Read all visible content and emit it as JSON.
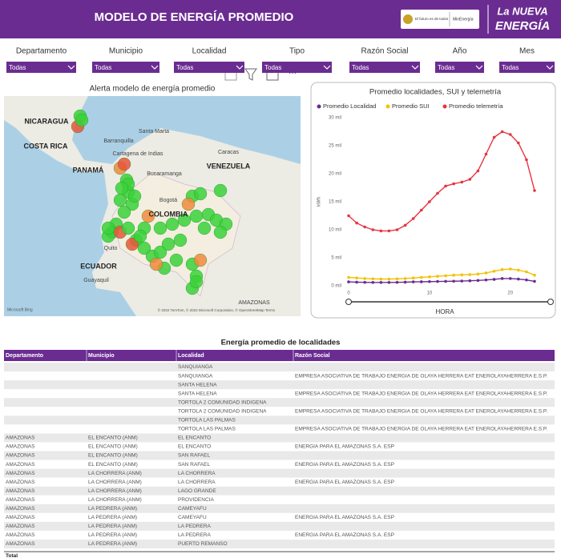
{
  "header": {
    "title": "MODELO DE ENERGÍA PROMEDIO",
    "logo_text": "El futuro es de todos",
    "ministry": "MinEnergía",
    "brand_line1": "La NUEVA",
    "brand_line2": "ENERGÍA"
  },
  "filters": [
    {
      "label": "Departamento",
      "value": "Todas"
    },
    {
      "label": "Municipio",
      "value": "Todas"
    },
    {
      "label": "Localidad",
      "value": "Todas"
    },
    {
      "label": "Tipo",
      "value": "Todas"
    },
    {
      "label": "Razón Social",
      "value": "Todas"
    },
    {
      "label": "Año",
      "value": "Todas"
    },
    {
      "label": "Mes",
      "value": "Todas"
    }
  ],
  "map": {
    "title": "Alerta modelo de energía promedio",
    "labels": [
      "NICARAGUA",
      "COSTA RICA",
      "PANAMÁ",
      "Santa Marta",
      "Barranquilla",
      "Cartagena de Indias",
      "Caracas",
      "VENEZUELA",
      "Bucaramanga",
      "Bogotá",
      "COLOMBIA",
      "Quito",
      "ECUADOR",
      "Guayaquil",
      "AMAZONAS"
    ],
    "attribution": "© 2022 TomTom, © 2022 Microsoft Corporation, © OpenStreetMap Terms",
    "provider": "Microsoft Bing"
  },
  "chart_data": {
    "type": "line",
    "title": "Promedio localidades, SUI y telemetría",
    "y_label": "kWh",
    "x_label": "HORA",
    "x": [
      0,
      1,
      2,
      3,
      4,
      5,
      6,
      7,
      8,
      9,
      10,
      11,
      12,
      13,
      14,
      15,
      16,
      17,
      18,
      19,
      20,
      21,
      22,
      23
    ],
    "xlim": [
      0,
      23
    ],
    "xticks": [
      0,
      10,
      20
    ],
    "ylim": [
      0,
      30000
    ],
    "yticks": [
      {
        "value": 0,
        "label": "0 mil"
      },
      {
        "value": 5000,
        "label": "5 mil"
      },
      {
        "value": 10000,
        "label": "10 mil"
      },
      {
        "value": 15000,
        "label": "15 mil"
      },
      {
        "value": 20000,
        "label": "20 mil"
      },
      {
        "value": 25000,
        "label": "25 mil"
      },
      {
        "value": 30000,
        "label": "30 mil"
      }
    ],
    "series": [
      {
        "name": "Promedio Localidad",
        "color": "#6b2c8f",
        "values": [
          700,
          650,
          620,
          600,
          600,
          600,
          620,
          650,
          700,
          720,
          750,
          780,
          800,
          820,
          850,
          900,
          950,
          1050,
          1150,
          1300,
          1300,
          1200,
          1050,
          800
        ]
      },
      {
        "name": "Promedio SUI",
        "color": "#f2c200",
        "values": [
          1500,
          1400,
          1300,
          1250,
          1200,
          1200,
          1250,
          1300,
          1400,
          1500,
          1600,
          1700,
          1800,
          1900,
          1950,
          2000,
          2100,
          2300,
          2600,
          2900,
          3000,
          2800,
          2500,
          1900
        ]
      },
      {
        "name": "Promedio telemetría",
        "color": "#e8333f",
        "values": [
          12500,
          11200,
          10500,
          10000,
          9800,
          9800,
          10000,
          10800,
          12000,
          13500,
          15000,
          16500,
          17800,
          18200,
          18500,
          19000,
          20500,
          23500,
          26500,
          27500,
          27000,
          25500,
          22500,
          17000
        ]
      }
    ]
  },
  "table": {
    "title": "Energía promedio de localidades",
    "columns": [
      "Departamento",
      "Municipio",
      "Localidad",
      "Razón Social"
    ],
    "rows": [
      [
        null,
        null,
        "SANQUIANGA",
        null
      ],
      [
        null,
        null,
        "SANQUIANGA",
        "EMPRESA ASOCIATIVA DE TRABAJO ENERGIA DE OLAYA HERRERA EAT ENEROLAYAHERRERA E.S.P."
      ],
      [
        null,
        null,
        "SANTA HELENA",
        null
      ],
      [
        null,
        null,
        "SANTA HELENA",
        "EMPRESA ASOCIATIVA DE TRABAJO ENERGIA DE OLAYA HERRERA EAT ENEROLAYAHERRERA E.S.P."
      ],
      [
        null,
        null,
        "TORTOLA 2 COMUNIDAD INDIGENA",
        null
      ],
      [
        null,
        null,
        "TORTOLA 2 COMUNIDAD INDIGENA",
        "EMPRESA ASOCIATIVA DE TRABAJO ENERGIA DE OLAYA HERRERA EAT ENEROLAYAHERRERA E.S.P."
      ],
      [
        null,
        null,
        "TORTOLA LAS PALMAS",
        null
      ],
      [
        null,
        null,
        "TORTOLA LAS PALMAS",
        "EMPRESA ASOCIATIVA DE TRABAJO ENERGIA DE OLAYA HERRERA EAT ENEROLAYAHERRERA E.S.P."
      ],
      [
        "AMAZONAS",
        "EL ENCANTO (ANM)",
        "EL ENCANTO",
        null
      ],
      [
        "AMAZONAS",
        "EL ENCANTO (ANM)",
        "EL ENCANTO",
        "ENERGIA PARA EL AMAZONAS S.A. ESP"
      ],
      [
        "AMAZONAS",
        "EL ENCANTO (ANM)",
        "SAN RAFAEL",
        null
      ],
      [
        "AMAZONAS",
        "EL ENCANTO (ANM)",
        "SAN RAFAEL",
        "ENERGIA PARA EL AMAZONAS S.A. ESP"
      ],
      [
        "AMAZONAS",
        "LA CHORRERA (ANM)",
        "LA CHORRERA",
        null
      ],
      [
        "AMAZONAS",
        "LA CHORRERA (ANM)",
        "LA CHORRERA",
        "ENERGIA PARA EL AMAZONAS S.A. ESP"
      ],
      [
        "AMAZONAS",
        "LA CHORRERA (ANM)",
        "LAGO GRANDE",
        null
      ],
      [
        "AMAZONAS",
        "LA CHORRERA (ANM)",
        "PROVIDENCIA",
        null
      ],
      [
        "AMAZONAS",
        "LA PEDRERA (ANM)",
        "CAMEYAFU",
        null
      ],
      [
        "AMAZONAS",
        "LA PEDRERA (ANM)",
        "CAMEYAFU",
        "ENERGIA PARA EL AMAZONAS S.A. ESP"
      ],
      [
        "AMAZONAS",
        "LA PEDRERA (ANM)",
        "LA PEDRERA",
        null
      ],
      [
        "AMAZONAS",
        "LA PEDRERA (ANM)",
        "LA PEDRERA",
        "ENERGIA PARA EL AMAZONAS S.A. ESP"
      ],
      [
        "AMAZONAS",
        "LA PEDRERA (ANM)",
        "PUERTO REMANSO",
        null
      ]
    ],
    "total_label": "Total"
  }
}
